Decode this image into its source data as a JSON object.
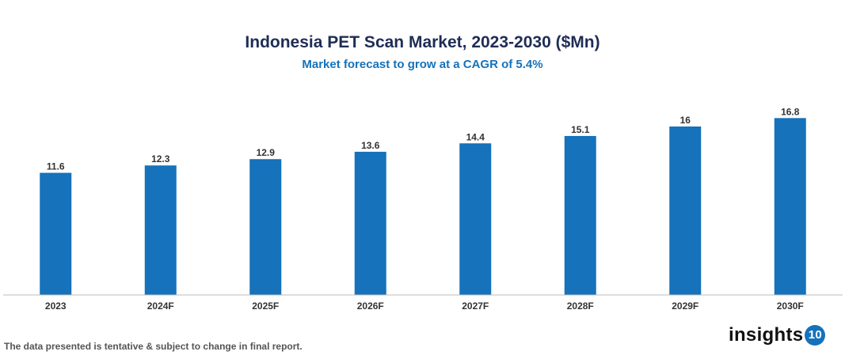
{
  "chart_data": {
    "type": "bar",
    "title": "Indonesia PET Scan Market, 2023-2030 ($Mn)",
    "subtitle": "Market forecast to grow at a CAGR of 5.4%",
    "categories": [
      "2023",
      "2024F",
      "2025F",
      "2026F",
      "2027F",
      "2028F",
      "2029F",
      "2030F"
    ],
    "values": [
      11.6,
      12.3,
      12.9,
      13.6,
      14.4,
      15.1,
      16,
      16.8
    ],
    "xlabel": "",
    "ylabel": "",
    "ylim": [
      0,
      17.5
    ],
    "grid": false,
    "bar_color": "#1572bb"
  },
  "footer": {
    "note": "The data presented is tentative & subject to change in final report.",
    "logo_text": "insights",
    "logo_badge": "10"
  }
}
